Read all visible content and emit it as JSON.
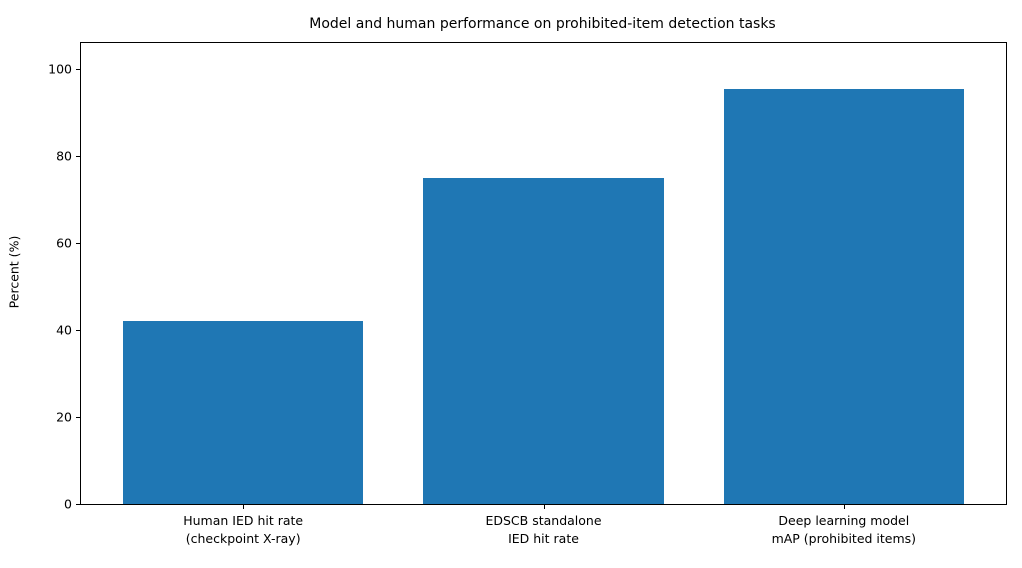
{
  "chart_data": {
    "type": "bar",
    "title": "Model and human performance on prohibited-item detection tasks",
    "xlabel": "",
    "ylabel": "Percent (%)",
    "categories": [
      "Human IED hit rate\n(checkpoint X-ray)",
      "EDSCB standalone\nIED hit rate",
      "Deep learning model\nmAP (prohibited items)"
    ],
    "values": [
      42,
      75,
      95.5
    ],
    "yticks": [
      0,
      20,
      40,
      60,
      80,
      100
    ],
    "ylim": [
      0,
      106
    ],
    "xlim": [
      -0.54,
      2.54
    ],
    "bar_width_category_units": 0.8,
    "bar_color": "#1f77b4",
    "grid": "off",
    "legend": "none",
    "background_color": "#ffffff",
    "spine_color": "#000000"
  }
}
